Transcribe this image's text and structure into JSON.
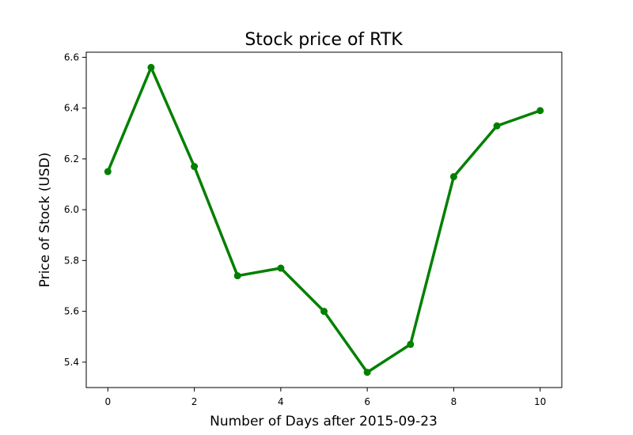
{
  "chart_data": {
    "type": "line",
    "title": "Stock price of RTK",
    "xlabel": "Number of Days after 2015-09-23",
    "ylabel": "Price of Stock (USD)",
    "xlim": [
      -0.5,
      10.5
    ],
    "ylim": [
      5.3,
      6.62
    ],
    "xticks": [
      0,
      2,
      4,
      6,
      8,
      10
    ],
    "yticks": [
      5.4,
      5.6,
      5.8,
      6.0,
      6.2,
      6.4,
      6.6
    ],
    "xtick_labels": [
      "0",
      "2",
      "4",
      "6",
      "8",
      "10"
    ],
    "ytick_labels": [
      "5.4",
      "5.6",
      "5.8",
      "6.0",
      "6.2",
      "6.4",
      "6.6"
    ],
    "grid": false,
    "series": [
      {
        "color": "#008000",
        "marker": "circle",
        "x": [
          0,
          1,
          2,
          3,
          4,
          5,
          6,
          7,
          8,
          9,
          10
        ],
        "y": [
          6.15,
          6.56,
          6.17,
          5.74,
          5.77,
          5.6,
          5.36,
          5.47,
          6.13,
          6.33,
          6.39
        ]
      }
    ]
  }
}
